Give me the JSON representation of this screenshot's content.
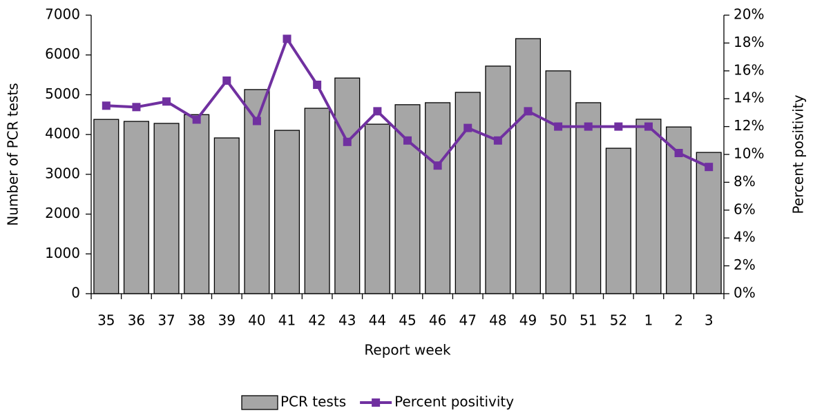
{
  "chart_data": {
    "type": "bar",
    "x_label": "Report week",
    "y_label": "Number of PCR tests",
    "y2_label": "Percent positivity",
    "categories": [
      "35",
      "36",
      "37",
      "38",
      "39",
      "40",
      "41",
      "42",
      "43",
      "44",
      "45",
      "46",
      "47",
      "48",
      "49",
      "50",
      "51",
      "52",
      "1",
      "2",
      "3"
    ],
    "series": [
      {
        "name": "PCR tests",
        "type": "bar",
        "color": "#a6a6a6",
        "values": [
          4380,
          4330,
          4280,
          4500,
          3915,
          5130,
          4105,
          4660,
          5420,
          4260,
          4750,
          4800,
          5060,
          5720,
          6410,
          5600,
          4800,
          3655,
          4385,
          4190,
          3550
        ]
      },
      {
        "name": "Percent positivity",
        "type": "line",
        "axis": "y2",
        "color": "#7030a0",
        "values": [
          13.5,
          13.4,
          13.8,
          12.5,
          15.3,
          12.4,
          18.3,
          15.0,
          10.9,
          13.1,
          11.0,
          9.2,
          11.9,
          11.0,
          13.1,
          12.0,
          12.0,
          12.0,
          12.0,
          10.1,
          9.1
        ]
      }
    ],
    "ylim": [
      0,
      7000
    ],
    "yticks": [
      0,
      1000,
      2000,
      3000,
      4000,
      5000,
      6000,
      7000
    ],
    "y2lim": [
      0,
      20
    ],
    "y2ticks": [
      {
        "value": 0,
        "label": "0%"
      },
      {
        "value": 2,
        "label": "2%"
      },
      {
        "value": 4,
        "label": "4%"
      },
      {
        "value": 6,
        "label": "6%"
      },
      {
        "value": 8,
        "label": "8%"
      },
      {
        "value": 10,
        "label": "10%"
      },
      {
        "value": 12,
        "label": "12%"
      },
      {
        "value": 14,
        "label": "14%"
      },
      {
        "value": 16,
        "label": "16%"
      },
      {
        "value": 18,
        "label": "18%"
      },
      {
        "value": 20,
        "label": "20%"
      }
    ],
    "grid": false,
    "legend": "bottom"
  }
}
